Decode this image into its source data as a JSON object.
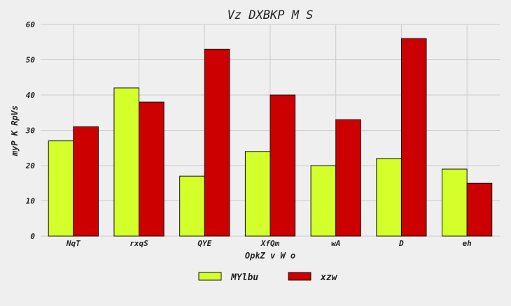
{
  "chart_data": {
    "type": "bar",
    "title": "Vz  DXBKP M S",
    "xlabel": "OpkZ v W o",
    "ylabel": "myP  K RpVs",
    "categories": [
      "NqT",
      "rxqS",
      "QYE",
      "XfQm",
      "wA",
      "D",
      "eh"
    ],
    "series": [
      {
        "name": "MYlbu",
        "color": "#d4ff2a",
        "values": [
          27,
          42,
          17,
          24,
          20,
          22,
          19
        ]
      },
      {
        "name": "xzw",
        "color": "#cc0000",
        "values": [
          31,
          38,
          53,
          40,
          33,
          56,
          15
        ]
      }
    ],
    "ylim": [
      0,
      60
    ],
    "yticks": [
      0,
      10,
      20,
      30,
      40,
      50,
      60
    ],
    "grid": true,
    "legend_position": "bottom"
  }
}
